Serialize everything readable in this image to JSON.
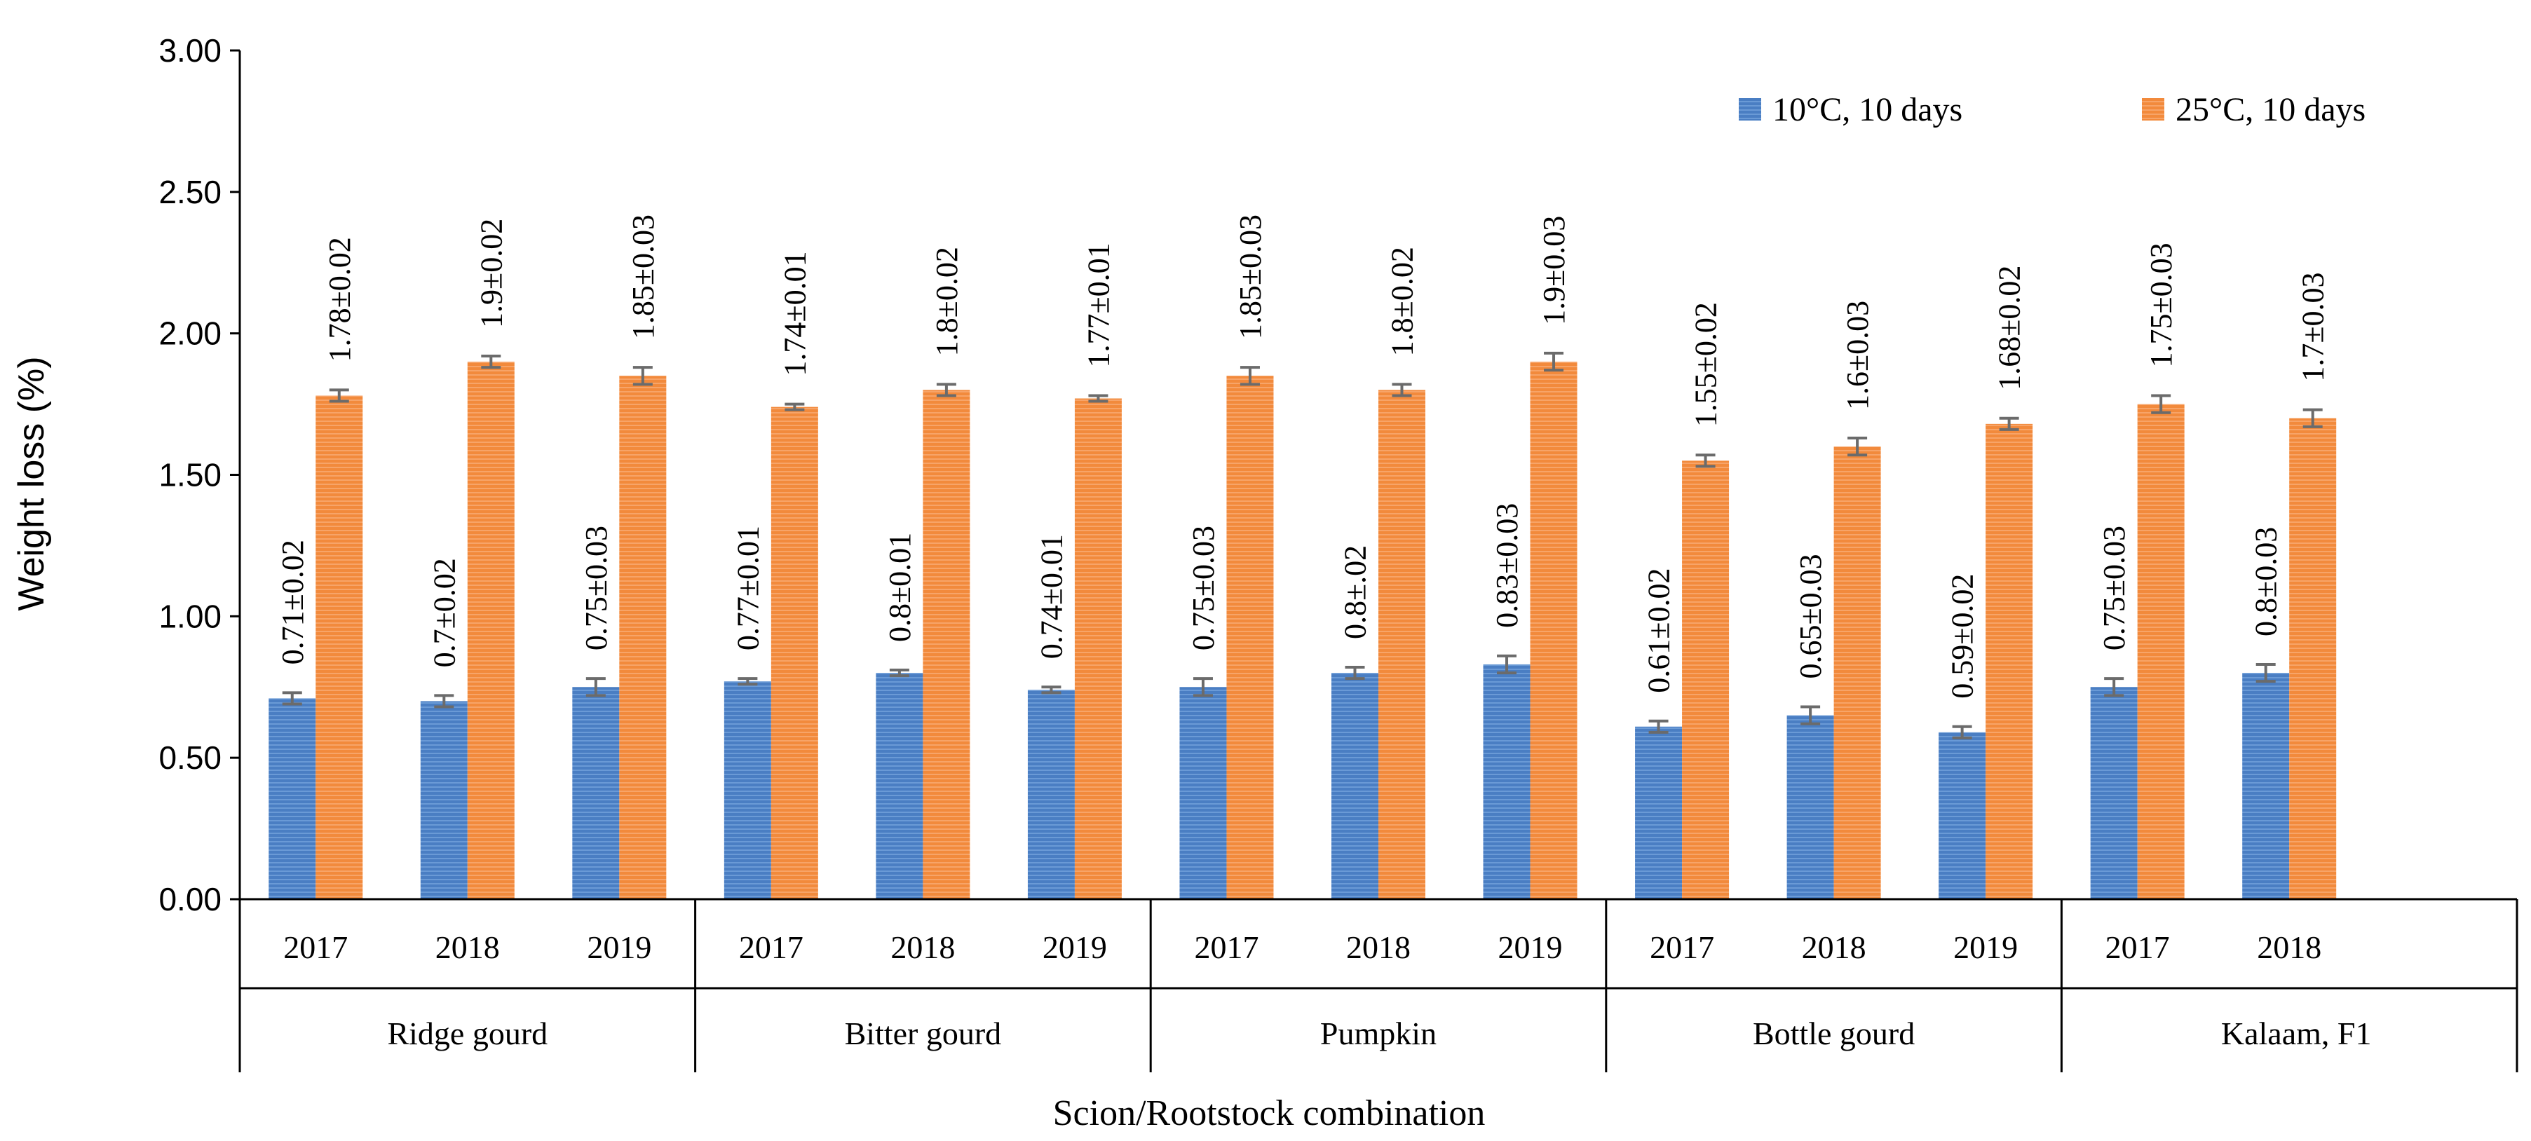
{
  "chart_data": {
    "type": "bar",
    "title": "",
    "xlabel": "Scion/Rootstock combination",
    "ylabel": "Weight loss (%)",
    "ylim": [
      0,
      3
    ],
    "yticks": [
      "0.00",
      "0.50",
      "1.00",
      "1.50",
      "2.00",
      "2.50",
      "3.00"
    ],
    "ytick_values": [
      0,
      0.5,
      1,
      1.5,
      2,
      2.5,
      3
    ],
    "grid": false,
    "legend_position": "top-right",
    "groups": [
      {
        "name": "Ridge gourd",
        "years": [
          "2017",
          "2018",
          "2019"
        ]
      },
      {
        "name": "Bitter gourd",
        "years": [
          "2017",
          "2018",
          "2019"
        ]
      },
      {
        "name": "Pumpkin",
        "years": [
          "2017",
          "2018",
          "2019"
        ]
      },
      {
        "name": "Bottle gourd",
        "years": [
          "2017",
          "2018",
          "2019"
        ]
      },
      {
        "name": "Kalaam, F1",
        "years": [
          "2017",
          "2018"
        ]
      }
    ],
    "series": [
      {
        "name": "10°C, 10 days",
        "color": "#4a7ec3",
        "values": [
          0.71,
          0.7,
          0.75,
          0.77,
          0.8,
          0.74,
          0.75,
          0.8,
          0.83,
          0.61,
          0.65,
          0.59,
          0.75,
          0.8
        ],
        "errors": [
          0.02,
          0.02,
          0.03,
          0.01,
          0.01,
          0.01,
          0.03,
          0.02,
          0.03,
          0.02,
          0.03,
          0.02,
          0.03,
          0.03
        ],
        "labels": [
          "0.71±0.02",
          "0.7±0.02",
          "0.75±0.03",
          "0.77±0.01",
          "0.8±0.01",
          "0.74±0.01",
          "0.75±0.03",
          "0.8±.02",
          "0.83±0.03",
          "0.61±0.02",
          "0.65±0.03",
          "0.59±0.02",
          "0.75±0.03",
          "0.8±0.03"
        ]
      },
      {
        "name": "25°C, 10 days",
        "color": "#f28a3c",
        "values": [
          1.78,
          1.9,
          1.85,
          1.74,
          1.8,
          1.77,
          1.85,
          1.8,
          1.9,
          1.55,
          1.6,
          1.68,
          1.75,
          1.7
        ],
        "errors": [
          0.02,
          0.02,
          0.03,
          0.01,
          0.02,
          0.01,
          0.03,
          0.02,
          0.03,
          0.02,
          0.03,
          0.02,
          0.03,
          0.03
        ],
        "labels": [
          "1.78±0.02",
          "1.9±0.02",
          "1.85±0.03",
          "1.74±0.01",
          "1.8±0.02",
          "1.77±0.01",
          "1.85±0.03",
          "1.8±0.02",
          "1.9±0.03",
          "1.55±0.02",
          "1.6±0.03",
          "1.68±0.02",
          "1.75±0.03",
          "1.7±0.03"
        ]
      }
    ]
  }
}
